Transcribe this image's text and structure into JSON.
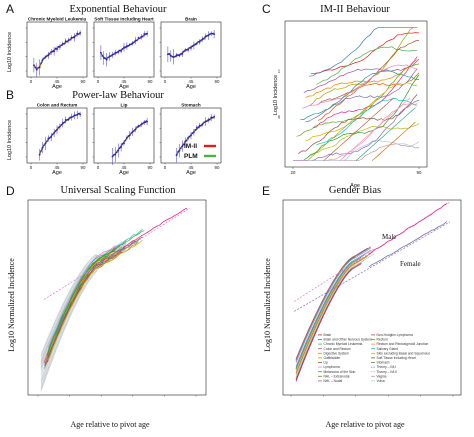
{
  "chart_data": [
    {
      "id": "A",
      "letter": "A",
      "title": "Exponential Behaviour",
      "type": "scatter",
      "ylabel": "Log10 Incidence",
      "xlabel": "Age",
      "subplots": [
        {
          "title": "Chronic Myeloid Leukemia",
          "xticks": [
            "0",
            "45",
            "90"
          ],
          "x": [
            5,
            10,
            15,
            20,
            25,
            30,
            35,
            40,
            45,
            50,
            55,
            60,
            65,
            70,
            75,
            80,
            85
          ],
          "y": [
            -0.6,
            -0.9,
            -0.7,
            -0.2,
            0.0,
            0.2,
            0.4,
            0.55,
            0.7,
            0.85,
            1.0,
            1.15,
            1.3,
            1.45,
            1.6,
            1.75,
            1.85
          ]
        },
        {
          "title": "Soft Tissue including Heart",
          "xticks": [
            "0",
            "45",
            "90"
          ],
          "x": [
            5,
            10,
            15,
            20,
            25,
            30,
            35,
            40,
            45,
            50,
            55,
            60,
            65,
            70,
            75,
            80,
            85
          ],
          "y": [
            0.3,
            0.0,
            -0.1,
            0.05,
            0.2,
            0.3,
            0.45,
            0.55,
            0.7,
            0.8,
            0.95,
            1.1,
            1.25,
            1.4,
            1.55,
            1.7,
            1.8
          ]
        },
        {
          "title": "Brain",
          "xticks": [
            "0",
            "45",
            "90"
          ],
          "x": [
            5,
            10,
            15,
            20,
            25,
            30,
            35,
            40,
            45,
            50,
            55,
            60,
            65,
            70,
            75,
            80,
            85
          ],
          "y": [
            0.3,
            0.15,
            0.0,
            0.1,
            0.2,
            0.35,
            0.5,
            0.65,
            0.8,
            0.95,
            1.1,
            1.25,
            1.4,
            1.55,
            1.7,
            1.8,
            1.85
          ]
        }
      ]
    },
    {
      "id": "B",
      "letter": "B",
      "title": "Power-law Behaviour",
      "type": "scatter",
      "ylabel": "Log10 Incidence",
      "xlabel": "Age",
      "legend": [
        {
          "name": "IM-II",
          "color": "#e41a1c"
        },
        {
          "name": "PLM",
          "color": "#4daf4a"
        }
      ],
      "subplots": [
        {
          "title": "Colon and Rectum",
          "xticks": [
            "0",
            "45",
            "90"
          ],
          "x": [
            15,
            20,
            25,
            30,
            35,
            40,
            45,
            50,
            55,
            60,
            65,
            70,
            75,
            80,
            85
          ],
          "y": [
            -0.8,
            -0.3,
            0.0,
            0.3,
            0.55,
            0.8,
            1.05,
            1.3,
            1.5,
            1.7,
            1.85,
            2.0,
            2.1,
            2.2,
            2.3
          ]
        },
        {
          "title": "Lip",
          "xticks": [
            "0",
            "45",
            "90"
          ],
          "x": [
            25,
            30,
            35,
            40,
            45,
            50,
            55,
            60,
            65,
            70,
            75,
            80,
            85
          ],
          "y": [
            -1.0,
            -0.8,
            -0.5,
            -0.2,
            0.1,
            0.4,
            0.65,
            0.9,
            1.1,
            1.3,
            1.45,
            1.6,
            1.75
          ]
        },
        {
          "title": "Stomach",
          "xticks": [
            "0",
            "45",
            "90"
          ],
          "x": [
            20,
            25,
            30,
            35,
            40,
            45,
            50,
            55,
            60,
            65,
            70,
            75,
            80,
            85
          ],
          "y": [
            -0.9,
            -0.5,
            -0.2,
            0.1,
            0.4,
            0.65,
            0.9,
            1.1,
            1.3,
            1.5,
            1.65,
            1.8,
            1.9,
            2.0
          ]
        }
      ]
    },
    {
      "id": "C",
      "letter": "C",
      "title": "IM-II Behaviour",
      "type": "line",
      "ylabel": "Log10 Incidence",
      "xlabel": "Age",
      "xticks": [
        "20",
        "90"
      ],
      "yticks": [
        "1",
        "0"
      ],
      "xlim": [
        20,
        90
      ],
      "ylim": [
        -1.0,
        2.0
      ]
    },
    {
      "id": "D",
      "letter": "D",
      "title": "Universal Scaling Function",
      "type": "line",
      "ylabel": "Log10 Normalized Incidence",
      "xlabel": "Age relative to pivot age"
    },
    {
      "id": "E",
      "letter": "E",
      "title": "Gender Bias",
      "type": "line",
      "ylabel": "Log10 Normalized Incidence",
      "xlabel": "Age relative to pivot age",
      "annotations": [
        "Male",
        "Female"
      ],
      "legend_col1": [
        "Brain",
        "Brain and Other Nervous System",
        "Chronic Myeloid Leukemia",
        "Colon and Rectum",
        "Digestive System",
        "Gallbladder",
        "Lip",
        "Lymphoma",
        "Melanoma of the Skin",
        "NHL – Extranodal",
        "NHL – Nodal"
      ],
      "legend_col2": [
        "Non-Hodgkin Lymphoma",
        "Rectum",
        "Rectum and Rectosigmoid Junction",
        "Salivary Gland",
        "Skin excluding Basal and Squamous",
        "Soft Tissue including Heart",
        "Stomach",
        "Theory – IM-I",
        "Theory – IM-II",
        "Vagina",
        "Vulva"
      ]
    }
  ],
  "palette": [
    "#e41a1c",
    "#377eb8",
    "#4daf4a",
    "#984ea3",
    "#ff7f00",
    "#a6a600",
    "#a65628",
    "#f781bf",
    "#1b9e77",
    "#d95f02",
    "#7570b3",
    "#e7298a",
    "#66a61e",
    "#e6ab02",
    "#17becf",
    "#bcbd22",
    "#8c564b",
    "#2ca02c",
    "#9467bd",
    "#ff9896",
    "#c49c94",
    "#aec7e8"
  ]
}
